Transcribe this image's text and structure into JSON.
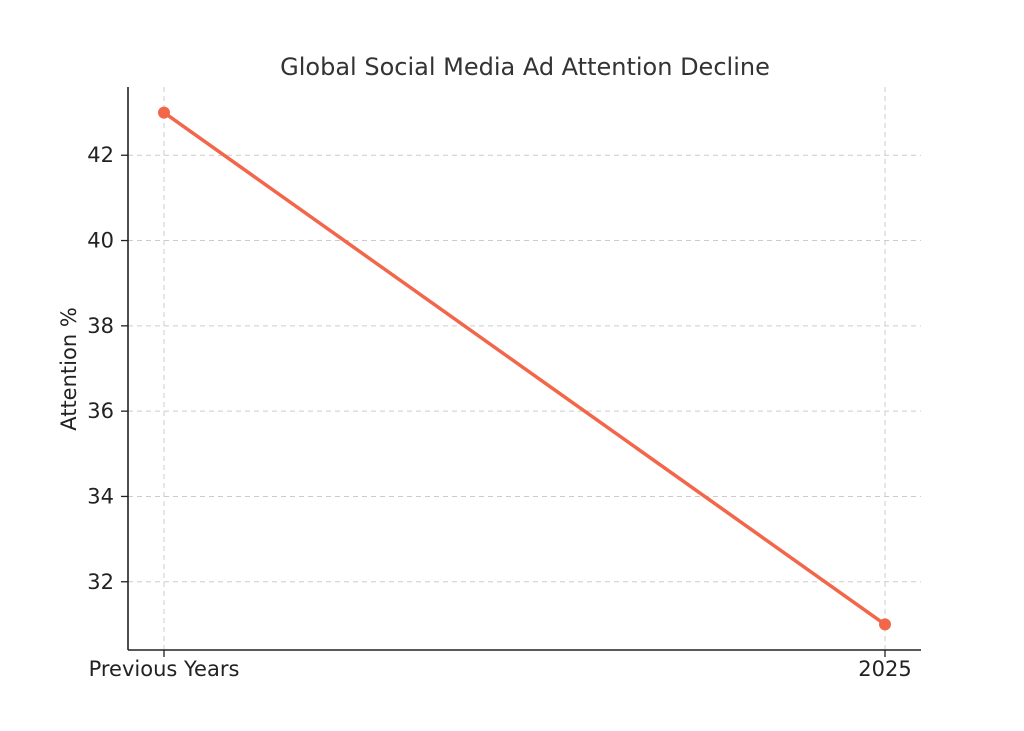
{
  "chart_data": {
    "type": "line",
    "title": "Global Social Media Ad Attention Decline",
    "xlabel": "",
    "ylabel": "Attention %",
    "categories": [
      "Previous Years",
      "2025"
    ],
    "series": [
      {
        "values": [
          43,
          31
        ]
      }
    ],
    "ylim": [
      30.4,
      43.6
    ],
    "yticks": [
      32,
      34,
      36,
      38,
      40,
      42
    ],
    "grid": true,
    "line_color": "#f2664a",
    "legend": "none"
  }
}
